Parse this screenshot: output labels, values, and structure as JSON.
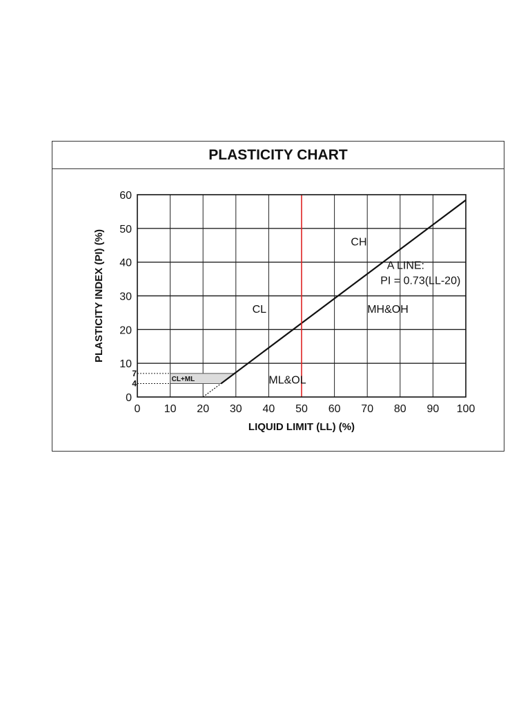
{
  "chart_data": {
    "type": "line",
    "title": "PLASTICITY CHART",
    "xlabel": "LIQUID LIMIT (LL) (%)",
    "ylabel": "PLASTICITY INDEX (PI) (%)",
    "xlim": [
      0,
      100
    ],
    "ylim": [
      0,
      60
    ],
    "x_ticks": [
      0,
      10,
      20,
      30,
      40,
      50,
      60,
      70,
      80,
      90,
      100
    ],
    "y_ticks": [
      0,
      10,
      20,
      30,
      40,
      50,
      60
    ],
    "y_extra_ticks": [
      4,
      7
    ],
    "grid": true,
    "series": [
      {
        "values": [
          [
            25.5,
            4
          ],
          [
            100,
            58.4
          ]
        ]
      },
      {
        "values": [
          [
            20,
            0
          ],
          [
            25.5,
            4
          ]
        ]
      },
      {
        "values": [
          [
            50,
            0
          ],
          [
            50,
            60
          ]
        ]
      }
    ],
    "regions": [
      {
        "label": "CL+ML",
        "polygon": [
          [
            10,
            4
          ],
          [
            25.5,
            4
          ],
          [
            29.6,
            7
          ],
          [
            10,
            7
          ]
        ]
      }
    ],
    "reference_lines": [
      {
        "y": 7,
        "x_from": 0,
        "x_to": 10
      },
      {
        "y": 4,
        "x_from": 0,
        "x_to": 10
      }
    ],
    "annotations": [
      {
        "text": "CH",
        "x": 65,
        "y": 45
      },
      {
        "text": "CL",
        "x": 35,
        "y": 25
      },
      {
        "text": "MH&OH",
        "x": 70,
        "y": 25
      },
      {
        "text": "ML&OL",
        "x": 40,
        "y": 4
      },
      {
        "text": "A LINE:",
        "x": 76,
        "y": 38
      },
      {
        "text": "PI = 0.73(LL-20)",
        "x": 74,
        "y": 33.5
      }
    ],
    "colors": {
      "a_line": "#111111",
      "u_line": "#dd2222",
      "grid": "#222222",
      "region_fill": "#dcdcdc"
    }
  }
}
